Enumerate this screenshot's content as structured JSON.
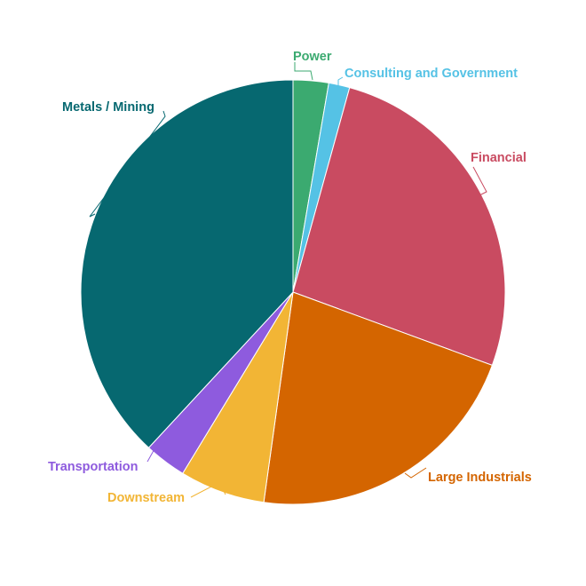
{
  "chart_data": {
    "type": "pie",
    "title": "",
    "slices": [
      {
        "label": "Power",
        "value": 2.7,
        "color": "#3BAA70"
      },
      {
        "label": "Consulting and Government",
        "value": 1.6,
        "color": "#55C2E5"
      },
      {
        "label": "Financial",
        "value": 26.3,
        "color": "#C94B61"
      },
      {
        "label": "Large Industrials",
        "value": 21.6,
        "color": "#D46500"
      },
      {
        "label": "Downstream",
        "value": 6.5,
        "color": "#F2B535"
      },
      {
        "label": "Transportation",
        "value": 3.2,
        "color": "#8E5BDE"
      },
      {
        "label": "Metals / Mining",
        "value": 38.1,
        "color": "#066870"
      }
    ],
    "legend": "none",
    "labels": "outside"
  }
}
